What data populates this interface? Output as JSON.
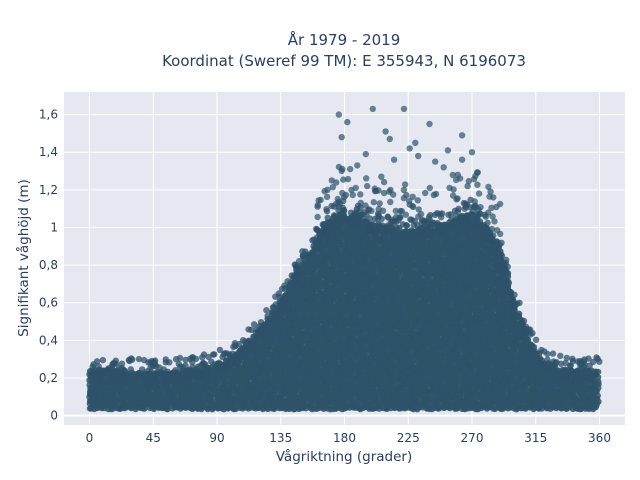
{
  "chart_data": {
    "type": "scatter",
    "title_line1": "År 1979 - 2019",
    "title_line2": "Koordinat (Sweref 99 TM): E 355943, N 6196073",
    "xlabel": "Vågriktning (grader)",
    "ylabel": "Signifikant våghöjd (m)",
    "xlim": [
      -18,
      378
    ],
    "ylim": [
      -0.05,
      1.72
    ],
    "xticks": [
      0,
      45,
      90,
      135,
      180,
      225,
      270,
      315,
      360
    ],
    "xtick_labels": [
      "0",
      "45",
      "90",
      "135",
      "180",
      "225",
      "270",
      "315",
      "360"
    ],
    "yticks": [
      0,
      0.2,
      0.4,
      0.6,
      0.8,
      1.0,
      1.2,
      1.4,
      1.6
    ],
    "ytick_labels": [
      "0",
      "0,2",
      "0,4",
      "0,6",
      "0,8",
      "1",
      "1,2",
      "1,4",
      "1,6"
    ],
    "grid": true,
    "marker_color": "#2e5269",
    "plot_background": "#e5e8f1",
    "envelope": {
      "x": [
        0,
        20,
        45,
        70,
        90,
        100,
        115,
        125,
        135,
        145,
        155,
        165,
        175,
        185,
        200,
        215,
        225,
        235,
        250,
        260,
        270,
        280,
        290,
        300,
        310,
        320,
        330,
        345,
        360
      ],
      "y": [
        0.24,
        0.24,
        0.23,
        0.24,
        0.27,
        0.32,
        0.41,
        0.5,
        0.6,
        0.75,
        0.86,
        1.0,
        1.08,
        1.06,
        1.02,
        1.0,
        0.98,
        1.0,
        1.02,
        1.05,
        1.08,
        1.0,
        0.88,
        0.6,
        0.42,
        0.3,
        0.25,
        0.24,
        0.24
      ],
      "floor": 0.04
    },
    "outliers": {
      "x": [
        176,
        178,
        182,
        200,
        222,
        209,
        230,
        240,
        253,
        263,
        270,
        263,
        244,
        226,
        212,
        184,
        189,
        195,
        260,
        250,
        215,
        232,
        188,
        171,
        168,
        275,
        285,
        178,
        196,
        206
      ],
      "y": [
        1.6,
        1.48,
        1.56,
        1.63,
        1.63,
        1.51,
        1.45,
        1.55,
        1.41,
        1.49,
        1.4,
        1.36,
        1.35,
        1.42,
        1.47,
        1.31,
        1.33,
        1.39,
        1.28,
        1.32,
        1.36,
        1.38,
        1.21,
        1.25,
        1.2,
        1.18,
        1.16,
        1.3,
        1.22,
        1.27
      ]
    }
  }
}
